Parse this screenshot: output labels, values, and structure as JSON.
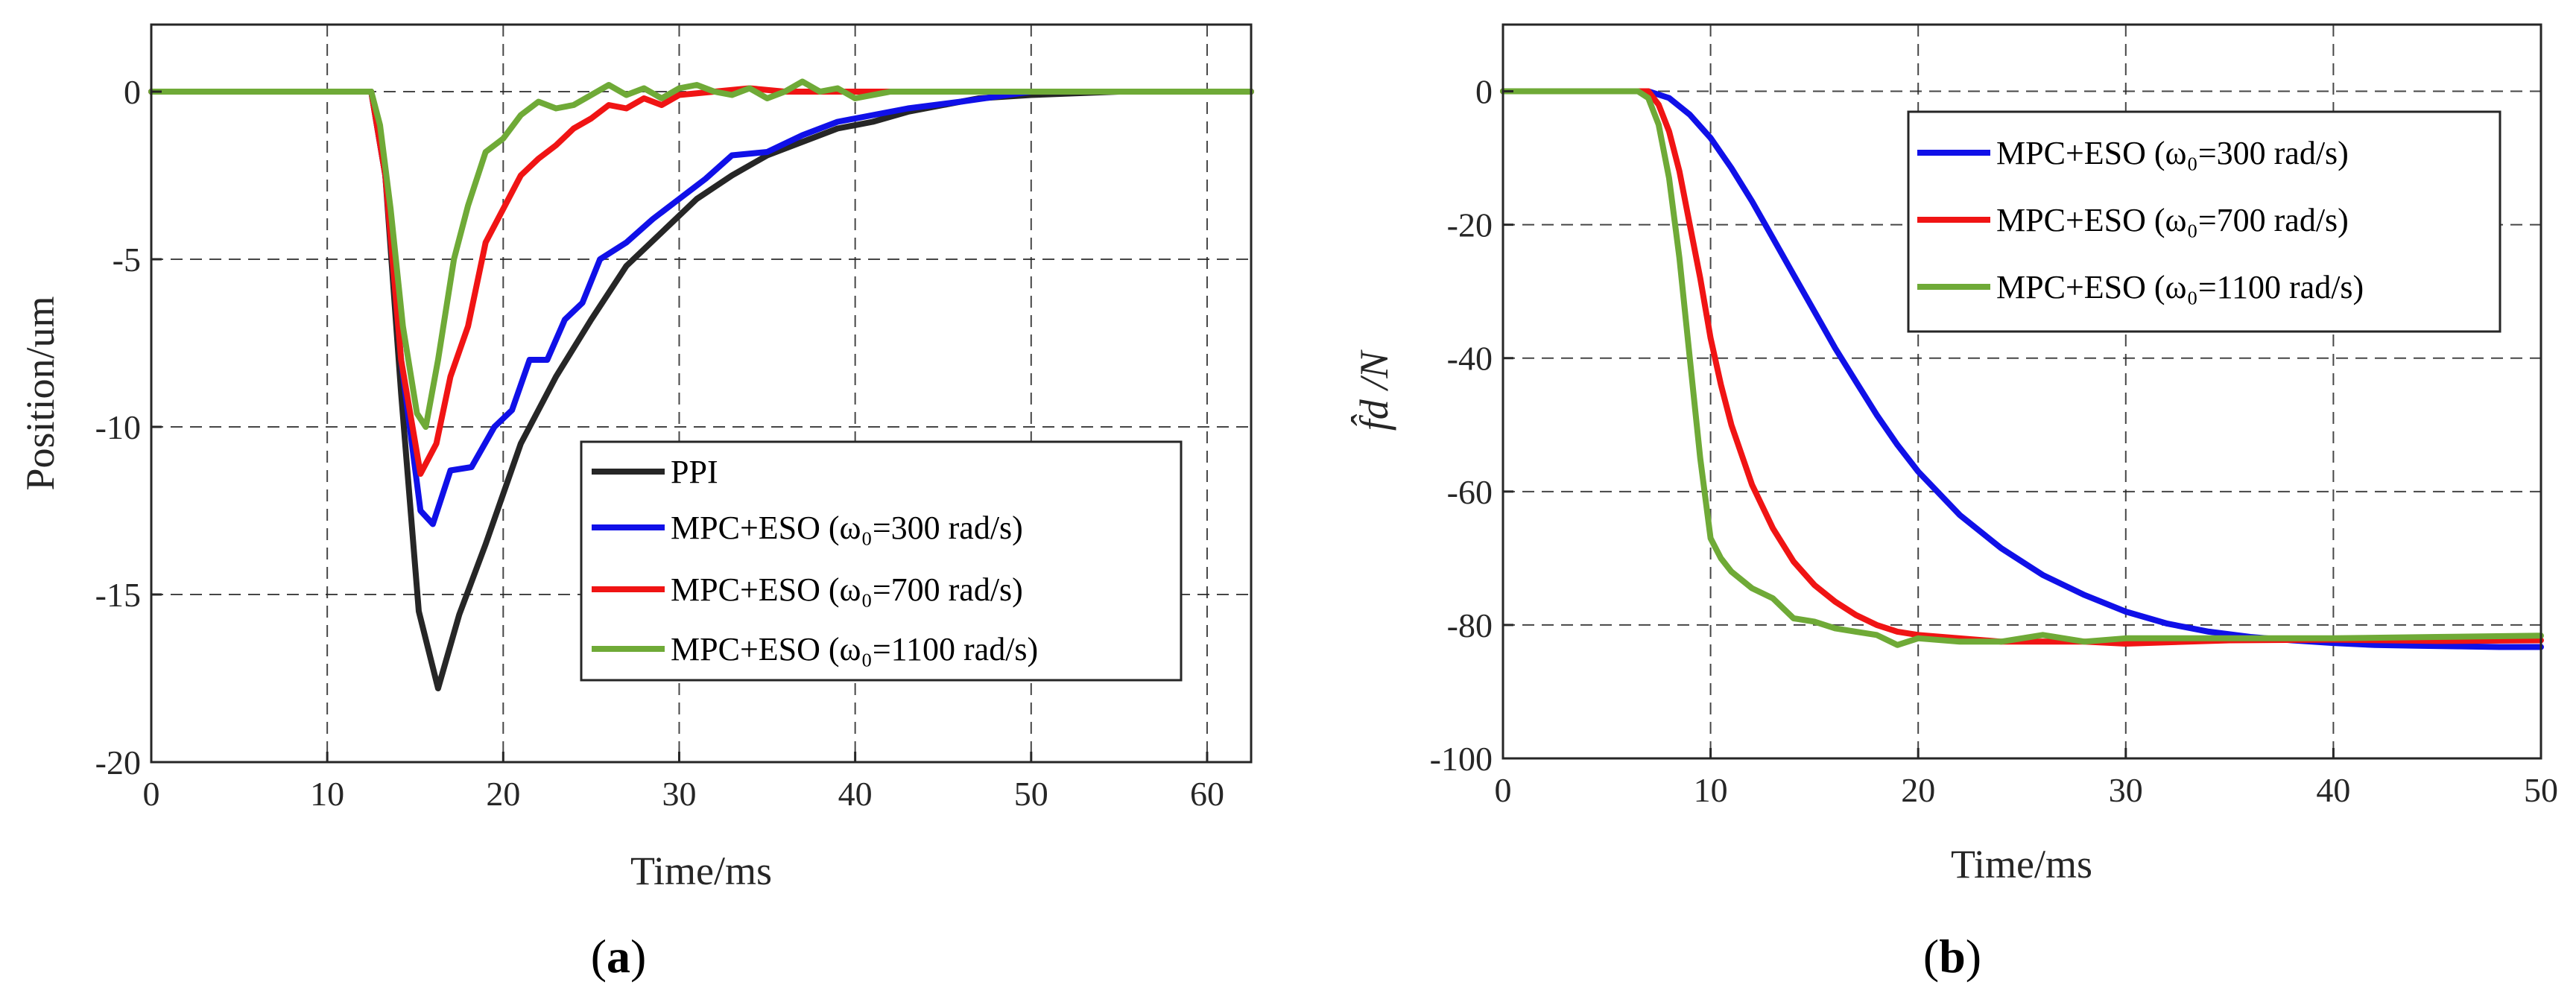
{
  "chart_data": [
    {
      "type": "line",
      "panel_label": "a",
      "xlabel": "Time/ms",
      "ylabel": "Position/um",
      "xlim": [
        0,
        62.5
      ],
      "ylim": [
        -20,
        2
      ],
      "xticks": [
        0,
        10,
        20,
        30,
        40,
        50,
        60
      ],
      "yticks": [
        0,
        -5,
        -10,
        -15,
        -20
      ],
      "xtick_labels": [
        "0",
        "10",
        "20",
        "30",
        "40",
        "50",
        "60"
      ],
      "ytick_labels": [
        "0",
        "-5",
        "-10",
        "-15",
        "-20"
      ],
      "grid": true,
      "legend_position": "bottom-right",
      "series": [
        {
          "name": "PPI",
          "legend_label": "PPI",
          "color": "#262626",
          "x": [
            0,
            12,
            12.5,
            13.3,
            14.2,
            15.2,
            16.3,
            17.5,
            19,
            21,
            23,
            25,
            27,
            29,
            31,
            33,
            35,
            37,
            39,
            41,
            43,
            45,
            47,
            50,
            55,
            60,
            62.5
          ],
          "y": [
            0,
            0,
            0,
            -2.5,
            -9,
            -15.5,
            -17.8,
            -15.6,
            -13.5,
            -10.5,
            -8.5,
            -6.8,
            -5.2,
            -4.2,
            -3.2,
            -2.5,
            -1.9,
            -1.5,
            -1.1,
            -0.9,
            -0.6,
            -0.4,
            -0.2,
            -0.1,
            0,
            0,
            0
          ]
        },
        {
          "name": "MPC+ESO 300",
          "legend_label": "MPC+ESO (ω₀=300 rad/s)",
          "color": "#1010e8",
          "x": [
            0,
            12,
            12.5,
            13.3,
            14.2,
            15.3,
            16,
            17,
            18.2,
            19.5,
            20.5,
            21.5,
            22.5,
            23.5,
            24.5,
            25.5,
            27,
            28.5,
            30,
            31.5,
            33,
            35,
            37,
            39,
            41,
            43,
            46,
            50,
            55,
            60,
            62.5
          ],
          "y": [
            0,
            0,
            0,
            -2.5,
            -8,
            -12.5,
            -12.9,
            -11.3,
            -11.2,
            -10,
            -9.5,
            -8,
            -8,
            -6.8,
            -6.3,
            -5,
            -4.5,
            -3.8,
            -3.2,
            -2.6,
            -1.9,
            -1.8,
            -1.3,
            -0.9,
            -0.7,
            -0.5,
            -0.3,
            0,
            0,
            0,
            0
          ]
        },
        {
          "name": "MPC+ESO 700",
          "legend_label": "MPC+ESO (ω₀=700 rad/s)",
          "color": "#f01414",
          "x": [
            0,
            12,
            12.5,
            13.3,
            14.2,
            15.3,
            16.2,
            17,
            18,
            19,
            20,
            21,
            22,
            23,
            24,
            25,
            26,
            27,
            28,
            29,
            30,
            32,
            34,
            36,
            40,
            45,
            50,
            55,
            60,
            62.5
          ],
          "y": [
            0,
            0,
            0,
            -2.5,
            -8,
            -11.4,
            -10.5,
            -8.5,
            -7,
            -4.5,
            -3.5,
            -2.5,
            -2,
            -1.6,
            -1.1,
            -0.8,
            -0.4,
            -0.5,
            -0.2,
            -0.4,
            -0.1,
            0,
            0.1,
            0,
            0,
            0,
            0,
            0,
            0,
            0
          ]
        },
        {
          "name": "MPC+ESO 1100",
          "legend_label": "MPC+ESO (ω₀=1100 rad/s)",
          "color": "#6faa37",
          "x": [
            0,
            12,
            12.5,
            13,
            13.6,
            14.3,
            15.1,
            15.6,
            16.3,
            17.2,
            18,
            19,
            20,
            21,
            22,
            23,
            24,
            25,
            26,
            27,
            28,
            29,
            30,
            31,
            32,
            33,
            34,
            35,
            36,
            37,
            38,
            39,
            40,
            42,
            44,
            46,
            50,
            55,
            60,
            62.5
          ],
          "y": [
            0,
            0,
            0,
            -1,
            -3.5,
            -7,
            -9.6,
            -10,
            -8,
            -5,
            -3.4,
            -1.8,
            -1.4,
            -0.7,
            -0.3,
            -0.5,
            -0.4,
            -0.1,
            0.2,
            -0.1,
            0.1,
            -0.2,
            0.1,
            0.2,
            0,
            -0.1,
            0.1,
            -0.2,
            0,
            0.3,
            0,
            0.1,
            -0.2,
            0,
            0,
            0,
            0,
            0,
            0,
            0
          ]
        }
      ]
    },
    {
      "type": "line",
      "panel_label": "b",
      "xlabel": "Time/ms",
      "ylabel": "f̂d /N",
      "xlim": [
        0,
        50
      ],
      "ylim": [
        -100,
        10
      ],
      "xticks": [
        0,
        10,
        20,
        30,
        40,
        50
      ],
      "yticks": [
        0,
        -20,
        -40,
        -60,
        -80,
        -100
      ],
      "xtick_labels": [
        "0",
        "10",
        "20",
        "30",
        "40",
        "50"
      ],
      "ytick_labels": [
        "0",
        "-20",
        "-40",
        "-60",
        "-80",
        "-100"
      ],
      "grid": true,
      "legend_position": "top-right",
      "series": [
        {
          "name": "MPC+ESO 300",
          "legend_label": "MPC+ESO (ω₀=300 rad/s)",
          "color": "#1010e8",
          "x": [
            0,
            6.5,
            7,
            8,
            9,
            10,
            11,
            12,
            13,
            14,
            15,
            16,
            17,
            18,
            19,
            20,
            22,
            24,
            26,
            28,
            30,
            32,
            34,
            36,
            38,
            40,
            42,
            44,
            46,
            48,
            50
          ],
          "y": [
            0,
            0,
            0,
            -1,
            -3.5,
            -7,
            -11.5,
            -16.5,
            -22,
            -27.5,
            -33,
            -38.5,
            -43.5,
            -48.5,
            -53,
            -57,
            -63.5,
            -68.5,
            -72.5,
            -75.5,
            -78,
            -79.8,
            -81,
            -81.8,
            -82.3,
            -82.7,
            -83,
            -83.1,
            -83.2,
            -83.3,
            -83.3
          ]
        },
        {
          "name": "MPC+ESO 700",
          "legend_label": "MPC+ESO (ω₀=700 rad/s)",
          "color": "#f01414",
          "x": [
            0,
            6.5,
            7,
            7.5,
            8,
            8.5,
            9,
            9.5,
            10,
            10.5,
            11,
            12,
            13,
            14,
            15,
            16,
            17,
            18,
            19,
            20,
            22,
            24,
            26,
            28,
            30,
            35,
            40,
            45,
            50
          ],
          "y": [
            0,
            0,
            0,
            -2,
            -6,
            -12,
            -20,
            -28,
            -37,
            -44,
            -50,
            -59,
            -65.5,
            -70.5,
            -74,
            -76.5,
            -78.5,
            -80,
            -81,
            -81.5,
            -82,
            -82.5,
            -82.5,
            -82.5,
            -82.8,
            -82.3,
            -82.2,
            -82.4,
            -82.3
          ]
        },
        {
          "name": "MPC+ESO 1100",
          "legend_label": "MPC+ESO (ω₀=1100 rad/s)",
          "color": "#6faa37",
          "x": [
            0,
            6.5,
            7,
            7.5,
            8,
            8.5,
            9,
            9.5,
            10,
            10.5,
            11,
            12,
            13,
            14,
            15,
            16,
            17,
            18,
            19,
            20,
            22,
            24,
            26,
            28,
            30,
            35,
            40,
            45,
            50
          ],
          "y": [
            0,
            0,
            -1,
            -5,
            -13,
            -25,
            -40,
            -55,
            -67,
            -70,
            -72,
            -74.5,
            -76,
            -79,
            -79.5,
            -80.5,
            -81,
            -81.5,
            -83,
            -82,
            -82.5,
            -82.5,
            -81.5,
            -82.5,
            -82,
            -82,
            -82,
            -81.8,
            -81.6
          ]
        }
      ]
    }
  ],
  "captions": {
    "a": {
      "open": "(",
      "label": "a",
      "close": ")"
    },
    "b": {
      "open": "(",
      "label": "b",
      "close": ")"
    }
  }
}
